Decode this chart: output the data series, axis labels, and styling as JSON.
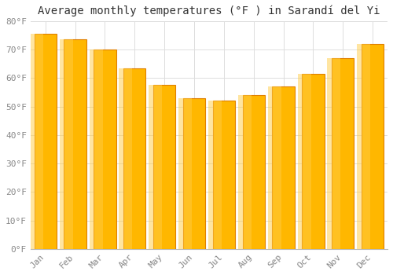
{
  "title": "Average monthly temperatures (°F ) in Sarandí del Yi",
  "months": [
    "Jan",
    "Feb",
    "Mar",
    "Apr",
    "May",
    "Jun",
    "Jul",
    "Aug",
    "Sep",
    "Oct",
    "Nov",
    "Dec"
  ],
  "values": [
    75.5,
    73.5,
    70.0,
    63.5,
    57.5,
    53.0,
    52.0,
    54.0,
    57.0,
    61.5,
    67.0,
    72.0
  ],
  "bar_color_top": "#FFB700",
  "bar_color_bottom": "#FFA000",
  "bar_edge_color": "#E08000",
  "background_color": "#FFFFFF",
  "plot_bg_color": "#FFFFFF",
  "grid_color": "#DDDDDD",
  "ylim": [
    0,
    80
  ],
  "ytick_step": 10,
  "title_fontsize": 10,
  "tick_fontsize": 8,
  "font_family": "monospace",
  "tick_color": "#888888",
  "title_color": "#333333"
}
